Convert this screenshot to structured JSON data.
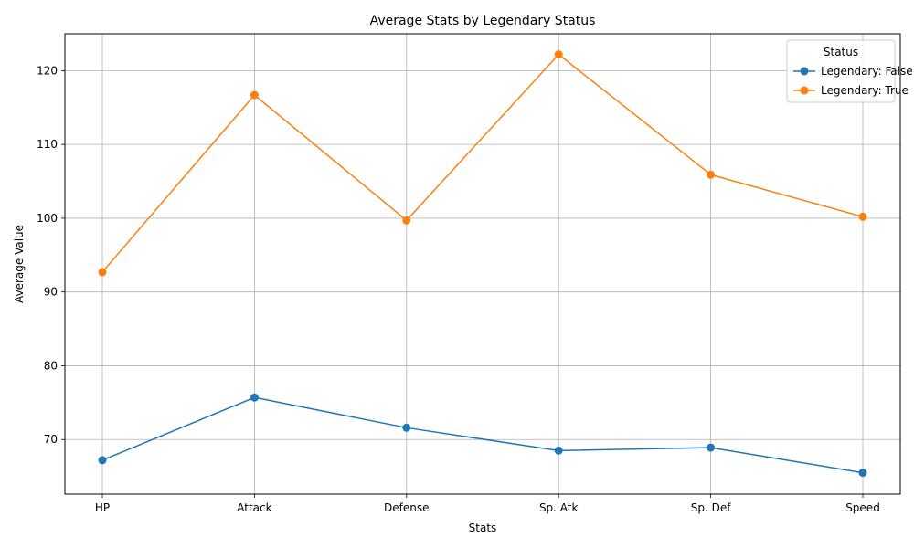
{
  "chart_data": {
    "type": "line",
    "title": "Average Stats by Legendary Status",
    "xlabel": "Stats",
    "ylabel": "Average Value",
    "categories": [
      "HP",
      "Attack",
      "Defense",
      "Sp. Atk",
      "Sp. Def",
      "Speed"
    ],
    "ylim": [
      62.6,
      125.0
    ],
    "yticks": [
      70,
      80,
      90,
      100,
      110,
      120
    ],
    "grid": true,
    "legend": {
      "title": "Status",
      "placement": "top-right"
    },
    "series": [
      {
        "name": "Legendary: False",
        "color": "#1f77b4",
        "values": [
          67.2,
          75.7,
          71.6,
          68.5,
          68.9,
          65.5
        ]
      },
      {
        "name": "Legendary: True",
        "color": "#ff7f0e",
        "values": [
          92.7,
          116.7,
          99.7,
          122.2,
          105.9,
          100.2
        ]
      }
    ]
  }
}
